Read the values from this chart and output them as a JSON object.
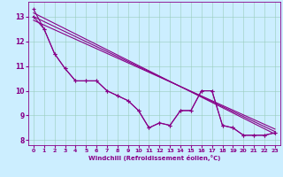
{
  "xlabel": "Windchill (Refroidissement éolien,°C)",
  "bg_color": "#cceeff",
  "line_color": "#880088",
  "grid_color": "#aaddcc",
  "xlim": [
    -0.5,
    23.5
  ],
  "ylim": [
    7.8,
    13.6
  ],
  "yticks": [
    8,
    9,
    10,
    11,
    12,
    13
  ],
  "xticks": [
    0,
    1,
    2,
    3,
    4,
    5,
    6,
    7,
    8,
    9,
    10,
    11,
    12,
    13,
    14,
    15,
    16,
    17,
    18,
    19,
    20,
    21,
    22,
    23
  ],
  "x_data": [
    0,
    1,
    2,
    3,
    4,
    5,
    6,
    7,
    8,
    9,
    10,
    11,
    12,
    13,
    14,
    15,
    16,
    17,
    18,
    19,
    20,
    21,
    22,
    23
  ],
  "line1": [
    13.0,
    12.5,
    11.5,
    10.9,
    10.4,
    10.4,
    10.4,
    10.0,
    9.8,
    9.6,
    9.2,
    8.5,
    8.7,
    8.6,
    9.2,
    9.2,
    10.0,
    10.0,
    8.6,
    8.5,
    8.2,
    8.2,
    8.2,
    8.3
  ],
  "line2": [
    13.3,
    12.5,
    11.5,
    10.9,
    10.4,
    10.4,
    10.4,
    10.0,
    9.8,
    9.6,
    9.2,
    8.5,
    8.7,
    8.6,
    9.2,
    9.2,
    10.0,
    10.0,
    8.6,
    8.5,
    8.2,
    8.2,
    8.2,
    8.3
  ],
  "trend1_x": [
    0,
    23
  ],
  "trend1_y": [
    13.0,
    8.35
  ],
  "trend2_x": [
    0,
    23
  ],
  "trend2_y": [
    13.15,
    8.25
  ],
  "trend3_x": [
    0,
    23
  ],
  "trend3_y": [
    12.85,
    8.45
  ]
}
